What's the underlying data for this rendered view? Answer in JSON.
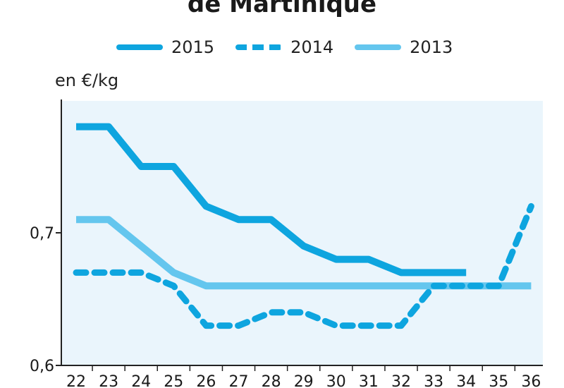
{
  "title": "de Martinique",
  "unit_label": "en €/kg",
  "chart_data": {
    "type": "line",
    "title": "de Martinique",
    "ylabel": "en €/kg",
    "xlabel": "",
    "x": [
      22,
      23,
      24,
      25,
      26,
      27,
      28,
      29,
      30,
      31,
      32,
      33,
      34,
      35,
      36
    ],
    "x_tick_labels": [
      "22",
      "23",
      "24",
      "25",
      "26",
      "27",
      "28",
      "29",
      "30",
      "31",
      "32",
      "33",
      "34",
      "35",
      "36"
    ],
    "y_tick_labels": [
      "0,6",
      "0,7"
    ],
    "y_ticks": [
      0.6,
      0.7
    ],
    "ylim": [
      0.6,
      0.78
    ],
    "grid": false,
    "legend_position": "top",
    "series": [
      {
        "name": "2015",
        "style": "solid",
        "color": "#0ea5df",
        "values": [
          0.78,
          0.78,
          0.75,
          0.75,
          0.72,
          0.71,
          0.71,
          0.69,
          0.68,
          0.68,
          0.67,
          0.67,
          0.67,
          null,
          null
        ]
      },
      {
        "name": "2014",
        "style": "dashed",
        "color": "#0ea5df",
        "values": [
          0.67,
          0.67,
          0.67,
          0.66,
          0.63,
          0.63,
          0.64,
          0.64,
          0.63,
          0.63,
          0.63,
          0.66,
          0.66,
          0.66,
          0.72
        ]
      },
      {
        "name": "2013",
        "style": "solid",
        "color": "#64c6ee",
        "values": [
          0.71,
          0.71,
          0.69,
          0.67,
          0.66,
          0.66,
          0.66,
          0.66,
          0.66,
          0.66,
          0.66,
          0.66,
          0.66,
          0.66,
          0.66
        ]
      }
    ]
  },
  "legend": [
    {
      "label": "2015"
    },
    {
      "label": "2014"
    },
    {
      "label": "2013"
    }
  ],
  "colors": {
    "plot_background": "#eaf5fc",
    "axis": "#222222",
    "series_dark": "#0ea5df",
    "series_light": "#64c6ee"
  }
}
